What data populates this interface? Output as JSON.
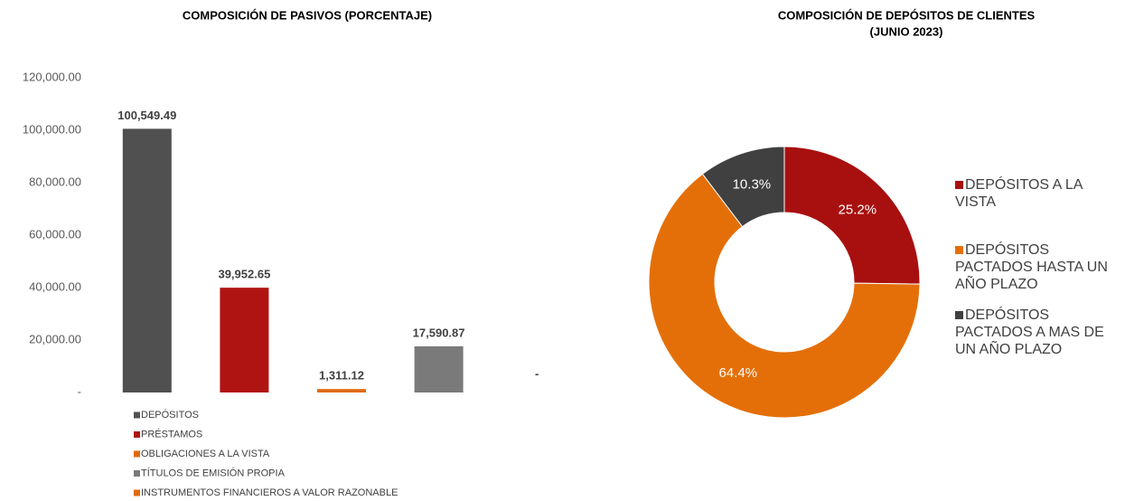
{
  "chart_data": [
    {
      "type": "bar",
      "title": "COMPOSICIÓN DE PASIVOS  (PORCENTAJE)",
      "categories": [
        "DEPÓSITOS",
        "PRÉSTAMOS",
        "OBLIGACIONES A LA VISTA",
        "TÍTULOS DE EMISIÓN PROPIA",
        "INSTRUMENTOS FINANCIEROS A VALOR RAZONABLE"
      ],
      "values": [
        100549.49,
        39952.65,
        1311.12,
        17590.87,
        0
      ],
      "value_labels": [
        "100,549.49",
        "39,952.65",
        "1,311.12",
        "17,590.87",
        "-"
      ],
      "colors": [
        "#505050",
        "#b01412",
        "#e06a0a",
        "#7a7a7a",
        "#e06a0a"
      ],
      "ylim": [
        0,
        120000
      ],
      "yticks": [
        {
          "value": 0,
          "label": "-"
        },
        {
          "value": 20000,
          "label": "20,000.00"
        },
        {
          "value": 40000,
          "label": "40,000.00"
        },
        {
          "value": 60000,
          "label": "60,000.00"
        },
        {
          "value": 80000,
          "label": "80,000.00"
        },
        {
          "value": 100000,
          "label": "100,000.00"
        },
        {
          "value": 120000,
          "label": "120,000.00"
        }
      ],
      "legend": "bottom-left"
    },
    {
      "type": "donut",
      "title": [
        "COMPOSICIÓN DE DEPÓSITOS DE CLIENTES",
        "(JUNIO 2023)"
      ],
      "categories": [
        "DEPÓSITOS A LA VISTA",
        "DEPÓSITOS PACTADOS HASTA UN AÑO PLAZO",
        "DEPÓSITOS PACTADOS A MAS DE UN AÑO PLAZO"
      ],
      "values": [
        25.2,
        64.4,
        10.3
      ],
      "value_labels": [
        "25.2%",
        "64.4%",
        "10.3%"
      ],
      "colors": [
        "#a8100f",
        "#e46f08",
        "#404040"
      ],
      "legend": "right"
    }
  ]
}
